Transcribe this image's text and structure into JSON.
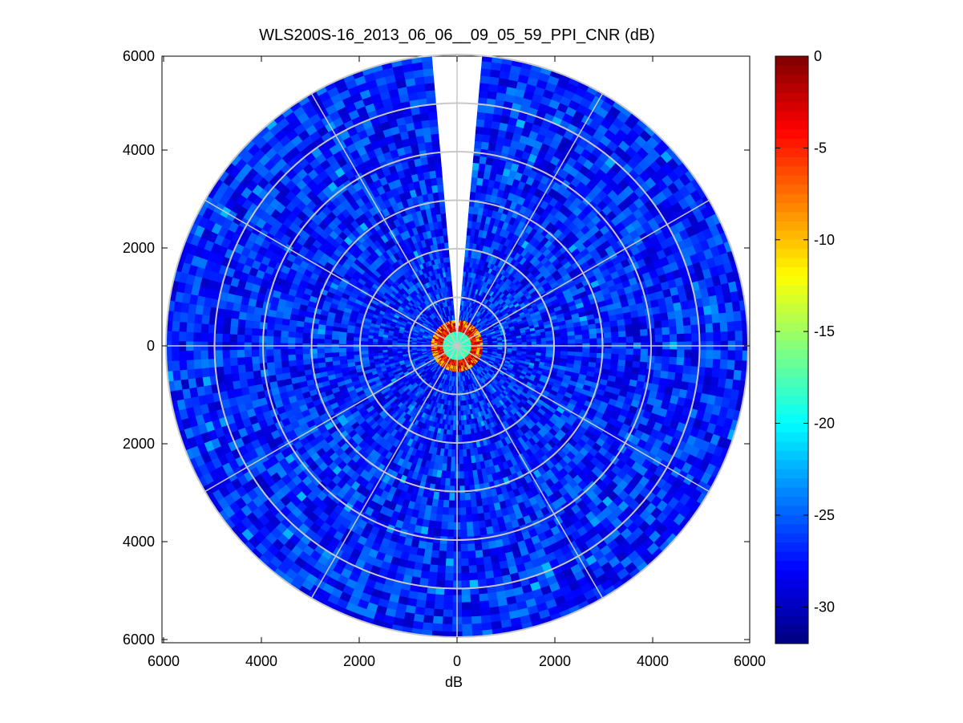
{
  "chart_data": {
    "type": "heatmap",
    "subtype": "polar-ppi",
    "title": "WLS200S-16_2013_06_06__09_05_59_PPI_CNR (dB)",
    "xlabel": "dB",
    "ylabel": "",
    "xlim": [
      -6000,
      6000
    ],
    "ylim": [
      -6000,
      6000
    ],
    "x_tick_labels": [
      "6000",
      "4000",
      "2000",
      "0",
      "2000",
      "4000",
      "6000"
    ],
    "y_tick_labels": [
      "6000",
      "4000",
      "2000",
      "0",
      "2000",
      "4000",
      "6000"
    ],
    "max_range": 6000,
    "range_rings": [
      1000,
      2000,
      3000,
      4000,
      5000,
      6000
    ],
    "spoke_angles_deg": [
      0,
      30,
      60,
      90,
      120,
      150,
      180,
      210,
      240,
      270,
      300,
      330
    ],
    "missing_sector_deg": [
      -5,
      5
    ],
    "colorbar": {
      "colormap": "jet",
      "range": [
        -32,
        0
      ],
      "tick_labels": [
        "0",
        "-5",
        "-10",
        "-15",
        "-20",
        "-25",
        "-30"
      ]
    },
    "field_summary": {
      "far_field_cnr_db": [
        -30,
        -24
      ],
      "typical_cnr_db": -27,
      "near_range_cnr_db": [
        -20,
        -2
      ],
      "near_range_limit": 500
    },
    "grid": true,
    "legend": "none"
  }
}
